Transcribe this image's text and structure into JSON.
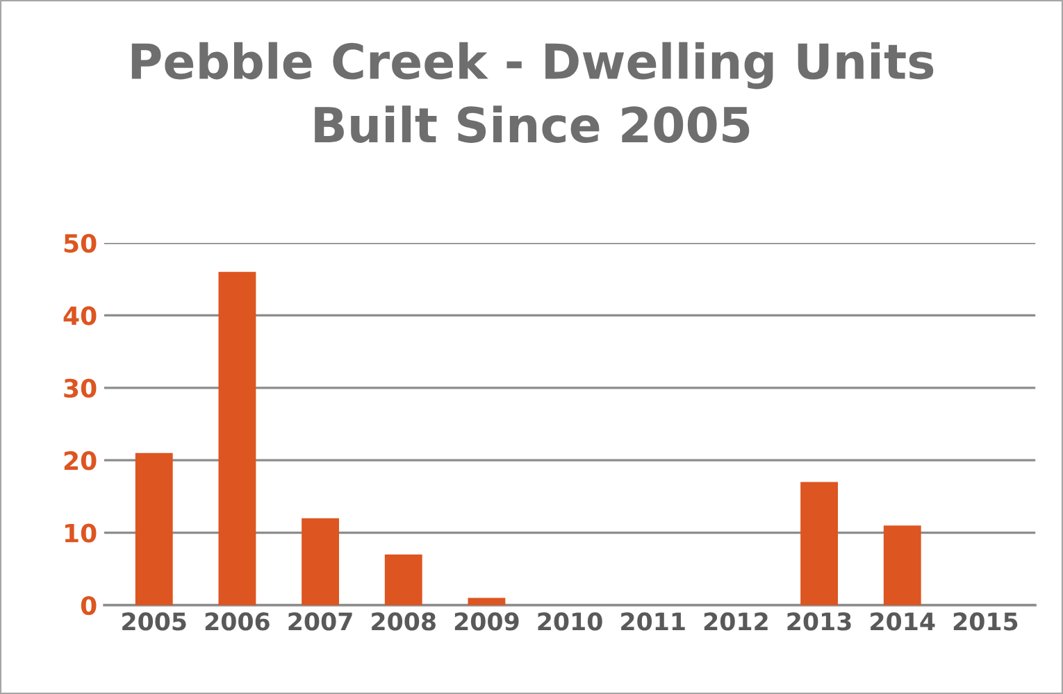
{
  "chart_data": {
    "type": "bar",
    "title": "Pebble Creek - Dwelling Units\nBuilt Since 2005",
    "categories": [
      "2005",
      "2006",
      "2007",
      "2008",
      "2009",
      "2010",
      "2011",
      "2012",
      "2013",
      "2014",
      "2015"
    ],
    "values": [
      21,
      46,
      12,
      7,
      1,
      0,
      0,
      0,
      17,
      11,
      0
    ],
    "color": "#dd5520",
    "ylim": [
      0,
      50
    ],
    "yticks": [
      0,
      10,
      20,
      30,
      40,
      50
    ],
    "grid": "y"
  }
}
